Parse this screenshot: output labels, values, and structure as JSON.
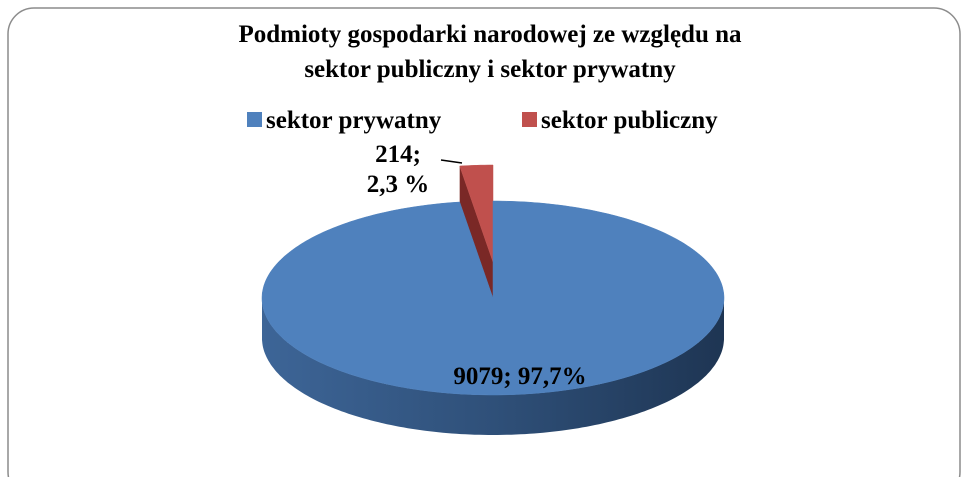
{
  "chart_data": {
    "type": "pie",
    "title": [
      "Podmioty gospodarki narodowej ze względu na",
      "sektor publiczny i sektor prywatny"
    ],
    "categories": [
      "sektor prywatny",
      "sektor publiczny"
    ],
    "values": [
      9079,
      214
    ],
    "value_labels": [
      "9079; 97,7%",
      "214; 2,3 %"
    ],
    "colors": [
      "#4f81bd",
      "#c0504d"
    ],
    "legend": "top"
  }
}
